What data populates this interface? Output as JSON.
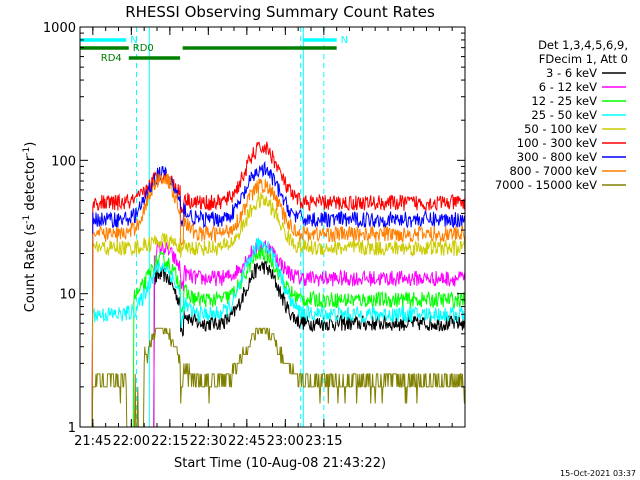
{
  "chart_data": {
    "type": "line",
    "title": "RHESSI Observing Summary Count Rates",
    "xlabel": "Start Time (10-Aug-08 21:43:22)",
    "ylabel_main": "Count Rate (s",
    "ylabel_sup1": "-1",
    "ylabel_mid": " detector",
    "ylabel_sup2": "-1",
    "ylabel_end": ")",
    "footer": "15-Oct-2021 03:37",
    "y_scale": "log",
    "ylim": [
      1,
      1000
    ],
    "xlim_minutes": [
      -5,
      145
    ],
    "x_ticks": [
      {
        "label": "21:45",
        "min": 0
      },
      {
        "label": "22:00",
        "min": 15
      },
      {
        "label": "22:15",
        "min": 30
      },
      {
        "label": "22:30",
        "min": 45
      },
      {
        "label": "22:45",
        "min": 60
      },
      {
        "label": "23:00",
        "min": 75
      },
      {
        "label": "23:15",
        "min": 90
      }
    ],
    "y_ticks": [
      {
        "label": "1",
        "value": 1
      },
      {
        "label": "10",
        "value": 10
      },
      {
        "label": "100",
        "value": 100
      },
      {
        "label": "1000",
        "value": 1000
      }
    ],
    "legend_header": [
      "Det 1,3,4,5,6,9,",
      "FDecim 1, Att 0"
    ],
    "legend_placement": "right",
    "series": [
      {
        "name": "3 - 6 keV",
        "color": "#000000",
        "base": 6,
        "peak1": 14,
        "peak2": 16,
        "start": 24
      },
      {
        "name": "6 - 12 keV",
        "color": "#ff00ff",
        "base": 13,
        "peak1": 22,
        "peak2": 23,
        "start": 24
      },
      {
        "name": "12 - 25 keV",
        "color": "#00ff00",
        "base": 9,
        "peak1": 18,
        "peak2": 20,
        "start": 16
      },
      {
        "name": "25 - 50 keV",
        "color": "#00ffff",
        "base": 7,
        "peak1": 16,
        "peak2": 24,
        "start": 0
      },
      {
        "name": "50 - 100 keV",
        "color": "#cccc00",
        "base": 22,
        "peak1": 25,
        "peak2": 50,
        "start": 0
      },
      {
        "name": "100 - 300 keV",
        "color": "#ff0000",
        "base": 48,
        "peak1": 78,
        "peak2": 125,
        "start": 0
      },
      {
        "name": "300 - 800 keV",
        "color": "#0000ff",
        "base": 36,
        "peak1": 80,
        "peak2": 85,
        "start": 0
      },
      {
        "name": "800 - 7000 keV",
        "color": "#ff7f00",
        "base": 28,
        "peak1": 75,
        "peak2": 65,
        "start": 0
      },
      {
        "name": "7000 - 15000 keV",
        "color": "#808000",
        "base": 2.2,
        "peak1": 5.5,
        "peak2": 5.5,
        "start": 0
      }
    ],
    "flare_centers_minutes": [
      27,
      66
    ],
    "night_intervals_minutes": [
      [
        -5,
        22
      ],
      [
        82,
        145
      ]
    ],
    "saa_markers_minutes": [
      [
        17,
        0
      ],
      [
        81,
        0
      ],
      [
        90,
        0
      ]
    ],
    "segments": [
      {
        "label": "N",
        "color": "#00ffff",
        "from": -5,
        "to": 13,
        "level": 1
      },
      {
        "label": "N",
        "color": "#00ffff",
        "from": 82,
        "to": 95,
        "level": 1
      },
      {
        "label": "RD0",
        "color": "#008000",
        "from": -5,
        "to": 14,
        "level": 2
      },
      {
        "label": "RD4",
        "color": "#008000",
        "from": 14,
        "to": 34,
        "level": 3
      },
      {
        "label": "",
        "color": "#008000",
        "from": 35,
        "to": 95,
        "level": 2
      }
    ]
  }
}
